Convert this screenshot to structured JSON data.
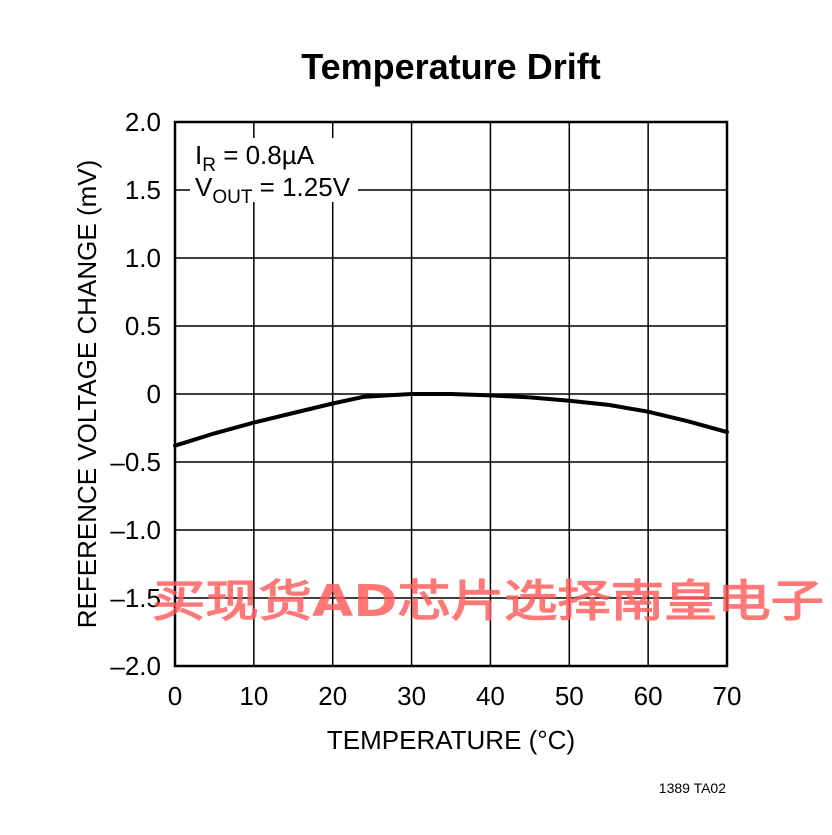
{
  "chart_data": {
    "type": "line",
    "title": "Temperature Drift",
    "xlabel": "TEMPERATURE (°C)",
    "ylabel": "REFERENCE VOLTAGE CHANGE (mV)",
    "xlim": [
      0,
      70
    ],
    "ylim": [
      -2.0,
      2.0
    ],
    "x_ticks": [
      0,
      10,
      20,
      30,
      40,
      50,
      60,
      70
    ],
    "x_tick_labels": [
      "0",
      "10",
      "20",
      "30",
      "40",
      "50",
      "60",
      "70"
    ],
    "y_ticks": [
      2.0,
      1.5,
      1.0,
      0.5,
      0,
      -0.5,
      -1.0,
      -1.5,
      -2.0
    ],
    "y_tick_labels": [
      "2.0",
      "1.5",
      "1.0",
      "0.5",
      "0",
      "–0.5",
      "–1.0",
      "–1.5",
      "–2.0"
    ],
    "grid": true,
    "series": [
      {
        "x": [
          0,
          5,
          10,
          15,
          20,
          24,
          30,
          35,
          40,
          45,
          50,
          55,
          60,
          65,
          70
        ],
        "y": [
          -0.38,
          -0.29,
          -0.21,
          -0.14,
          -0.07,
          -0.02,
          0.0,
          0.0,
          -0.01,
          -0.025,
          -0.05,
          -0.08,
          -0.13,
          -0.2,
          -0.28
        ]
      }
    ],
    "annotations": [
      {
        "main": "I",
        "sub": "R",
        "rest": " = 0.8µA"
      },
      {
        "main": "V",
        "sub": "OUT",
        "rest": " = 1.25V"
      }
    ]
  },
  "figure_id": "1389 TA02",
  "watermark": "买现货AD芯片选择南皇电子"
}
